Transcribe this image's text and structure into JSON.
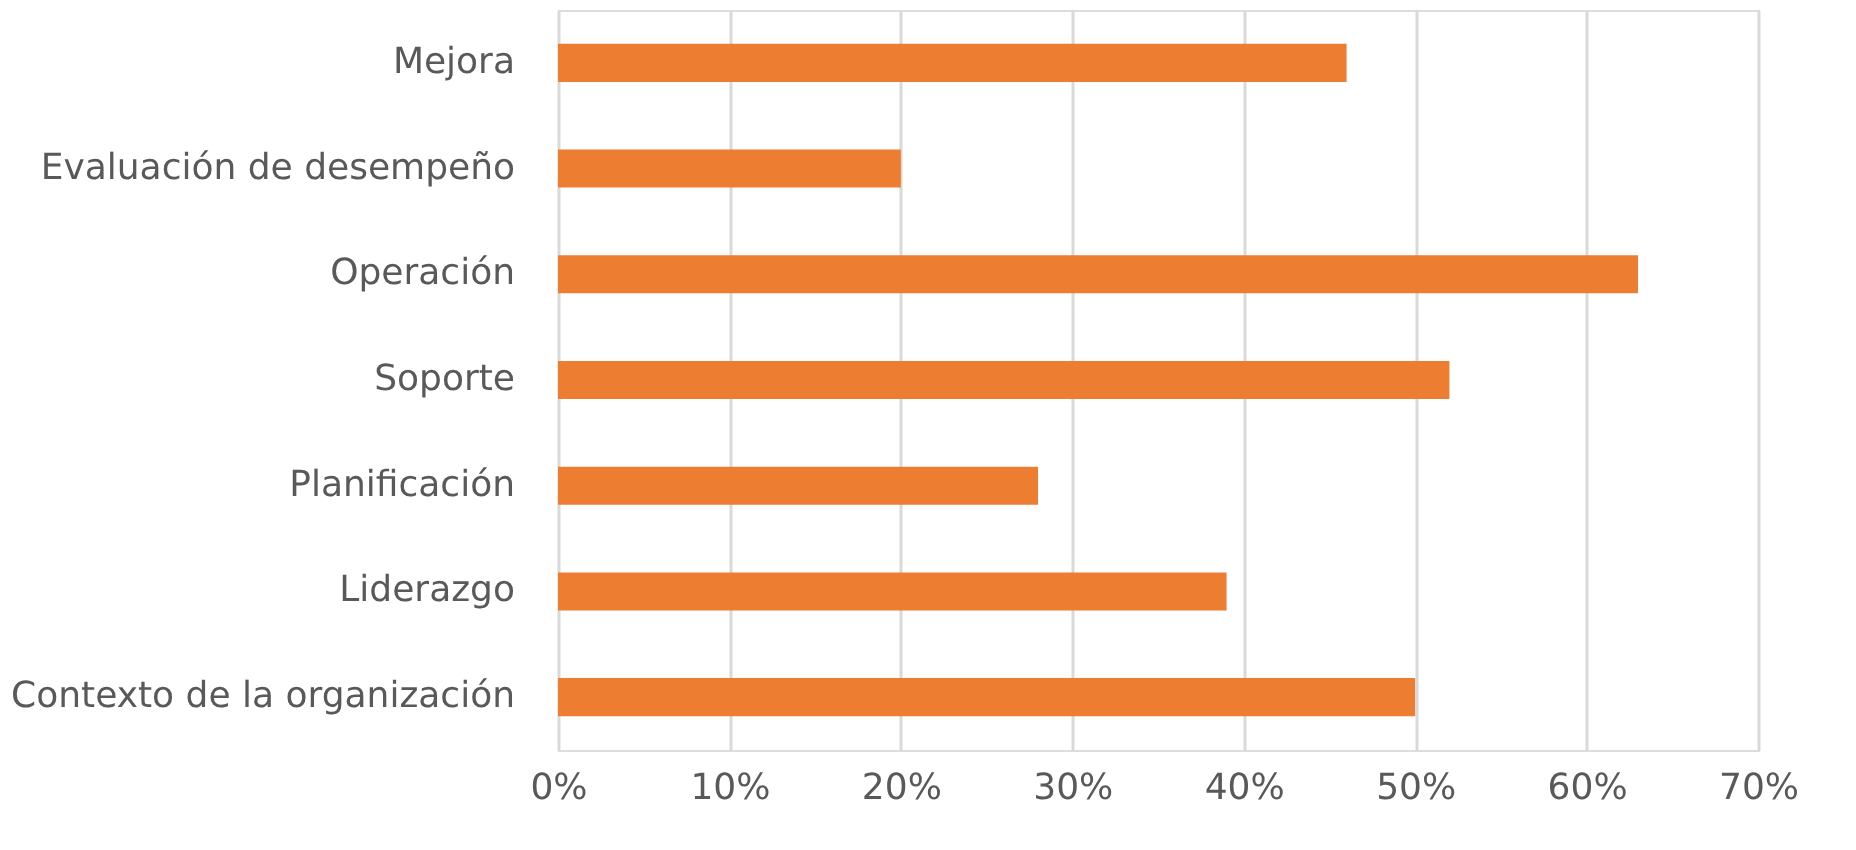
{
  "chart_data": {
    "type": "bar",
    "orientation": "horizontal",
    "categories": [
      "Mejora",
      "Evaluación de desempeño",
      "Operación",
      "Soporte",
      "Planificación",
      "Liderazgo",
      "Contexto de la organización"
    ],
    "values": [
      46,
      20,
      63,
      52,
      28,
      39,
      50
    ],
    "color": "#ed7d31",
    "xlim": [
      0,
      70
    ],
    "xticks": [
      {
        "value": 0,
        "label": "0%"
      },
      {
        "value": 10,
        "label": "10%"
      },
      {
        "value": 20,
        "label": "20%"
      },
      {
        "value": 30,
        "label": "30%"
      },
      {
        "value": 40,
        "label": "40%"
      },
      {
        "value": 50,
        "label": "50%"
      },
      {
        "value": 60,
        "label": "60%"
      },
      {
        "value": 70,
        "label": "70%"
      }
    ],
    "grid": "x"
  }
}
